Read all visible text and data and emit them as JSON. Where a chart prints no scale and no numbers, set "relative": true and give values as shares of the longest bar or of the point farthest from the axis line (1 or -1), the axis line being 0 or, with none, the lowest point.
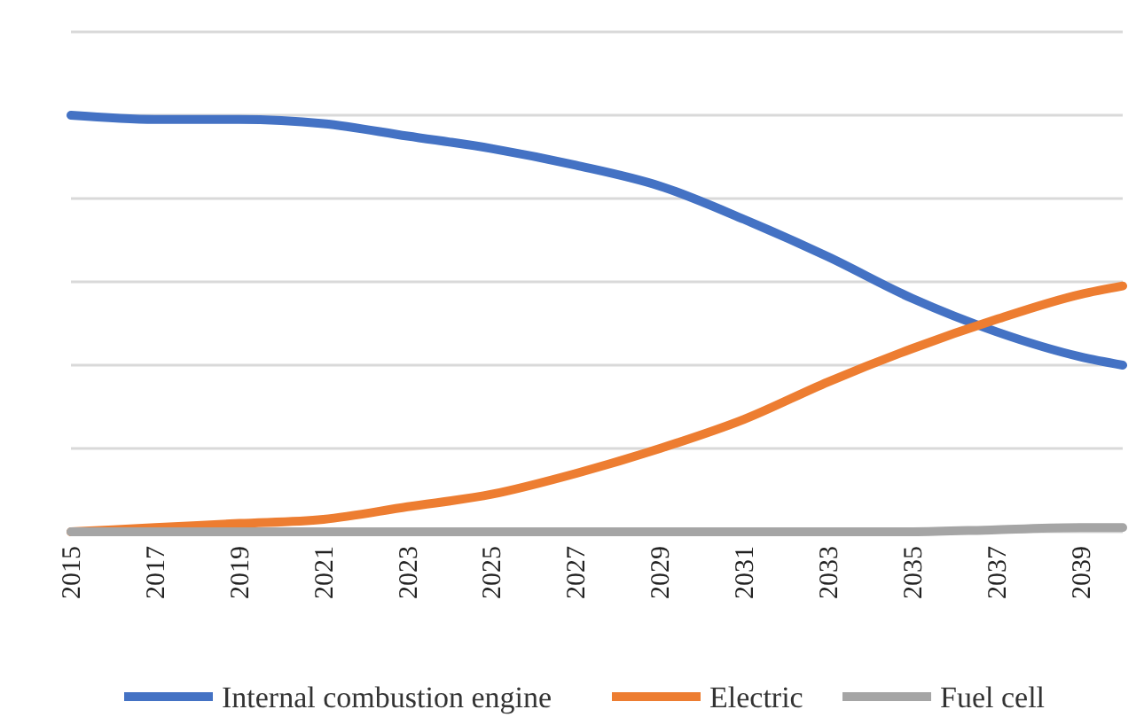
{
  "chart_data": {
    "type": "line",
    "relative": true,
    "grid": "y",
    "legend": "bottom",
    "x": [
      2015,
      2017,
      2019,
      2021,
      2023,
      2025,
      2027,
      2029,
      2031,
      2033,
      2035,
      2037,
      2039,
      2040
    ],
    "xlim": [
      2015,
      2040
    ],
    "xticks": [
      2015,
      2017,
      2019,
      2021,
      2023,
      2025,
      2027,
      2029,
      2031,
      2033,
      2035,
      2037,
      2039
    ],
    "series": [
      {
        "name": "Internal combustion engine",
        "color": "#4472c4",
        "values": [
          1.0,
          0.99,
          0.99,
          0.98,
          0.95,
          0.92,
          0.88,
          0.83,
          0.75,
          0.66,
          0.56,
          0.48,
          0.42,
          0.4
        ]
      },
      {
        "name": "Electric",
        "color": "#ed7d31",
        "values": [
          0,
          0.01,
          0.02,
          0.03,
          0.06,
          0.09,
          0.14,
          0.2,
          0.27,
          0.36,
          0.44,
          0.51,
          0.57,
          0.59
        ]
      },
      {
        "name": "Fuel cell",
        "color": "#a5a5a5",
        "values": [
          0,
          0,
          0,
          0,
          0,
          0,
          0,
          0,
          0,
          0,
          0,
          0.005,
          0.01,
          0.01
        ]
      }
    ]
  }
}
